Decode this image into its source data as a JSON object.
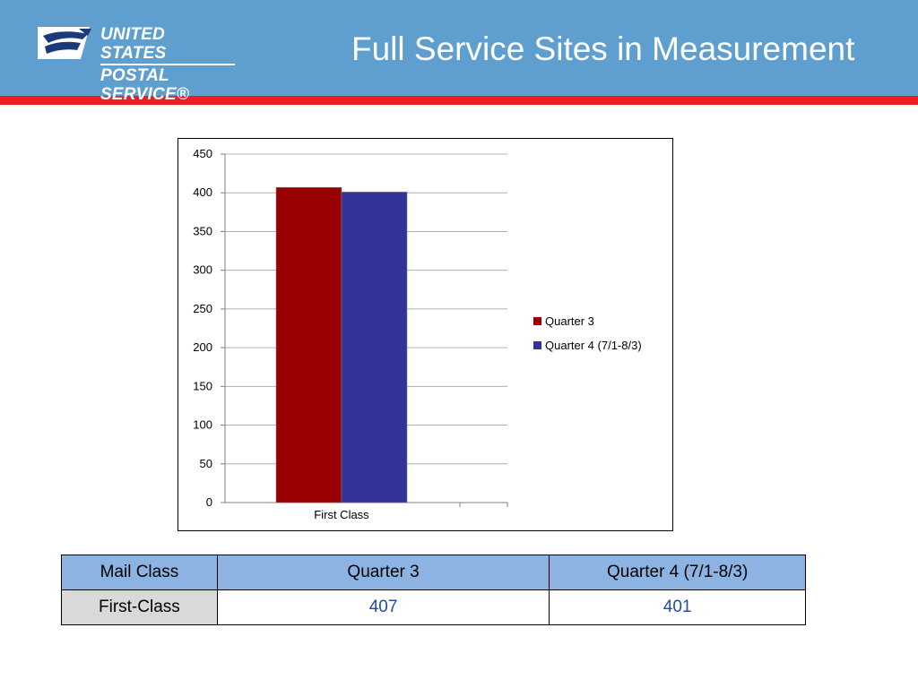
{
  "header": {
    "logo_line1": "UNITED STATES",
    "logo_line2": "POSTAL SERVICE®",
    "title": "Full Service Sites in Measurement",
    "bg_color": "#5e9fd0",
    "accent_color": "#ee1c24"
  },
  "chart_data": {
    "type": "bar",
    "categories": [
      "First Class"
    ],
    "series": [
      {
        "name": "Quarter 3",
        "values": [
          407
        ],
        "color": "#990000"
      },
      {
        "name": "Quarter 4 (7/1-8/3)",
        "values": [
          401
        ],
        "color": "#333399"
      }
    ],
    "yticks": [
      "0",
      "50",
      "100",
      "150",
      "200",
      "250",
      "300",
      "350",
      "400",
      "450"
    ],
    "ylim": [
      0,
      450
    ],
    "grid": true,
    "legend": "right",
    "title": "",
    "xlabel": "",
    "ylabel": ""
  },
  "table": {
    "headers": [
      "Mail Class",
      "Quarter 3",
      "Quarter 4 (7/1-8/3)"
    ],
    "rows": [
      [
        "First-Class",
        "407",
        "401"
      ]
    ]
  }
}
